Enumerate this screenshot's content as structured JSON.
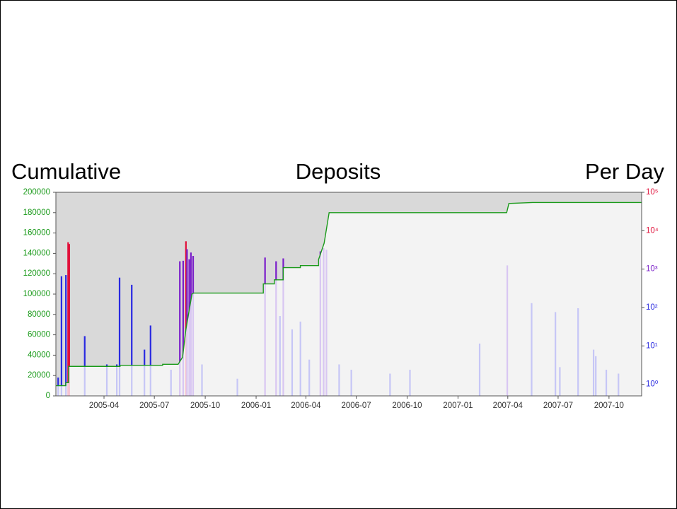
{
  "chart_data": {
    "type": "line-bar",
    "left_label": "Cumulative",
    "title": "Deposits",
    "right_label": "Per Day",
    "xlim": [
      "2005-01-04",
      "2007-11-29"
    ],
    "xticks": [
      {
        "value": "2005-04-01",
        "label": "2005-04"
      },
      {
        "value": "2005-07-01",
        "label": "2005-07"
      },
      {
        "value": "2005-10-01",
        "label": "2005-10"
      },
      {
        "value": "2006-01-01",
        "label": "2006-01"
      },
      {
        "value": "2006-04-01",
        "label": "2006-04"
      },
      {
        "value": "2006-07-01",
        "label": "2006-07"
      },
      {
        "value": "2006-10-01",
        "label": "2006-10"
      },
      {
        "value": "2007-01-01",
        "label": "2007-01"
      },
      {
        "value": "2007-04-01",
        "label": "2007-04"
      },
      {
        "value": "2007-07-01",
        "label": "2007-07"
      },
      {
        "value": "2007-10-01",
        "label": "2007-10"
      }
    ],
    "ylim": [
      0,
      200000
    ],
    "yticks": [
      0,
      20000,
      40000,
      60000,
      80000,
      100000,
      120000,
      140000,
      160000,
      180000,
      200000
    ],
    "y_color": "#1a9a1a",
    "y2lim": [
      0.5,
      100000
    ],
    "y2log": true,
    "y2ticks": [
      {
        "value": 1,
        "label": "10⁰"
      },
      {
        "value": 10,
        "label": "10¹"
      },
      {
        "value": 100,
        "label": "10²"
      },
      {
        "value": 1000,
        "label": "10³"
      },
      {
        "value": 10000,
        "label": "10⁴"
      },
      {
        "value": 100000,
        "label": "10⁵"
      }
    ],
    "color_scale": [
      {
        "min": 0,
        "color": "#2a2ae0",
        "pale": "#c6c6f6"
      },
      {
        "min": 1000,
        "color": "#7a1ec8",
        "pale": "#d8c6f2"
      },
      {
        "min": 4000,
        "color": "#e0103a",
        "pale": "#f6c4d2"
      }
    ],
    "background_above": "#d9d9d9",
    "background_below": "#f3f3f3",
    "series": [
      {
        "type": "line",
        "color": "#1a9a1a",
        "x": [
          "2005-01-04",
          "2005-01-22",
          "2005-01-22",
          "2005-01-27",
          "2005-01-27",
          "2005-04-30",
          "2005-04-30",
          "2005-07-16",
          "2005-07-16",
          "2005-08-13",
          "2005-08-21",
          "2005-08-27",
          "2005-09-07",
          "2005-09-10",
          "2006-01-14",
          "2006-01-14",
          "2006-02-03",
          "2006-02-03",
          "2006-02-19",
          "2006-02-19",
          "2006-03-22",
          "2006-03-22",
          "2006-04-24",
          "2006-04-24",
          "2006-05-04",
          "2006-05-13",
          "2007-03-30",
          "2007-04-03",
          "2007-05-16",
          "2007-11-29"
        ],
        "values": [
          10000,
          10000,
          13000,
          13000,
          29000,
          29000,
          30000,
          30000,
          31000,
          31000,
          38000,
          65000,
          100000,
          101000,
          101000,
          110000,
          110000,
          114000,
          114000,
          126000,
          126000,
          128000,
          128000,
          134000,
          150000,
          180000,
          180000,
          189000,
          190000,
          190000
        ]
      },
      {
        "type": "bar",
        "axis": "y2",
        "x": [
          "2005-01-08",
          "2005-01-14",
          "2005-01-22",
          "2005-01-26",
          "2005-01-28",
          "2005-02-25",
          "2005-04-06",
          "2005-04-24",
          "2005-04-29",
          "2005-05-21",
          "2005-06-13",
          "2005-06-24",
          "2005-07-31",
          "2005-08-16",
          "2005-08-22",
          "2005-08-27",
          "2005-08-29",
          "2005-09-02",
          "2005-09-05",
          "2005-09-09",
          "2005-09-25",
          "2005-11-28",
          "2006-01-17",
          "2006-02-06",
          "2006-02-13",
          "2006-02-19",
          "2006-03-07",
          "2006-03-22",
          "2006-04-07",
          "2006-04-27",
          "2006-05-03",
          "2006-05-08",
          "2006-05-31",
          "2006-06-22",
          "2006-08-31",
          "2006-10-06",
          "2007-02-09",
          "2007-03-31",
          "2007-05-14",
          "2007-06-26",
          "2007-07-04",
          "2007-08-06",
          "2007-09-03",
          "2007-09-07",
          "2007-09-26",
          "2007-10-18"
        ],
        "values": [
          1.5,
          650,
          700,
          5000,
          4500,
          18,
          3.3,
          3.3,
          600,
          390,
          8,
          34,
          2.4,
          1600,
          1650,
          5300,
          3300,
          1800,
          2700,
          2200,
          3.3,
          1.4,
          2000,
          1600,
          60,
          1900,
          27,
          43,
          4.4,
          2900,
          3500,
          3200,
          3.3,
          2.4,
          1.9,
          2.4,
          11.5,
          1250,
          130,
          76,
          2.8,
          96,
          8,
          5.4,
          2.4,
          1.9
        ]
      }
    ]
  }
}
